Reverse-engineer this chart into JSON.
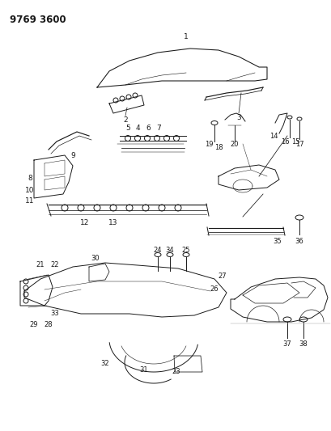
{
  "title": "9769 3600",
  "bg_color": "#ffffff",
  "line_color": "#1a1a1a",
  "title_fontsize": 8.5,
  "label_fontsize": 6.5,
  "figsize": [
    4.1,
    5.33
  ],
  "dpi": 100
}
